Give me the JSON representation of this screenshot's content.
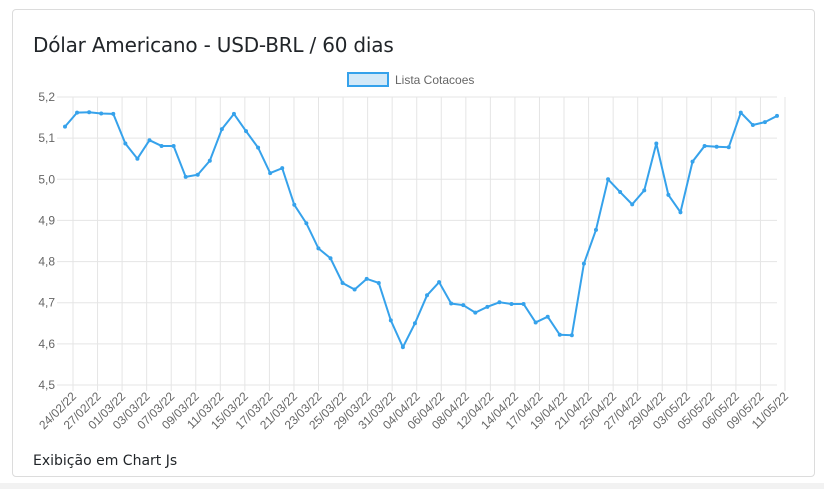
{
  "card": {
    "title": "Dólar Americano - USD-BRL / 60 dias",
    "footer": "Exibição em Chart Js"
  },
  "chart_data": {
    "type": "line",
    "title": "",
    "xlabel": "",
    "ylabel": "",
    "ylim": [
      4.5,
      5.2
    ],
    "y_ticks": [
      "5,2",
      "5,1",
      "5,0",
      "4,9",
      "4,8",
      "4,7",
      "4,6",
      "4,5"
    ],
    "x_tick_labels": [
      "24/02/22",
      "27/02/22",
      "01/03/22",
      "03/03/22",
      "07/03/22",
      "09/03/22",
      "11/03/22",
      "15/03/22",
      "17/03/22",
      "21/03/22",
      "23/03/22",
      "25/03/22",
      "29/03/22",
      "31/03/22",
      "04/04/22",
      "06/04/22",
      "08/04/22",
      "12/04/22",
      "14/04/22",
      "17/04/22",
      "19/04/22",
      "21/04/22",
      "25/04/22",
      "27/04/22",
      "29/04/22",
      "03/05/22",
      "05/05/22",
      "06/05/22",
      "09/05/22",
      "11/05/22"
    ],
    "grid": true,
    "legend_position": "top-center",
    "colors": {
      "line": "#36a2eb",
      "fill": "#d3e9f8",
      "grid": "#e5e5e5"
    },
    "series": [
      {
        "name": "Lista Cotacoes",
        "values": [
          5.128,
          5.162,
          5.163,
          5.16,
          5.159,
          5.087,
          5.05,
          5.095,
          5.081,
          5.081,
          5.006,
          5.011,
          5.045,
          5.122,
          5.159,
          5.117,
          5.077,
          5.015,
          5.027,
          4.938,
          4.893,
          4.832,
          4.808,
          4.748,
          4.732,
          4.758,
          4.748,
          4.657,
          4.592,
          4.65,
          4.718,
          4.75,
          4.698,
          4.694,
          4.676,
          4.69,
          4.701,
          4.697,
          4.697,
          4.652,
          4.666,
          4.622,
          4.621,
          4.795,
          4.877,
          5.0,
          4.969,
          4.939,
          4.973,
          5.087,
          4.962,
          4.92,
          5.043,
          5.081,
          5.079,
          5.078,
          5.162,
          5.132,
          5.139,
          5.154
        ]
      }
    ]
  }
}
